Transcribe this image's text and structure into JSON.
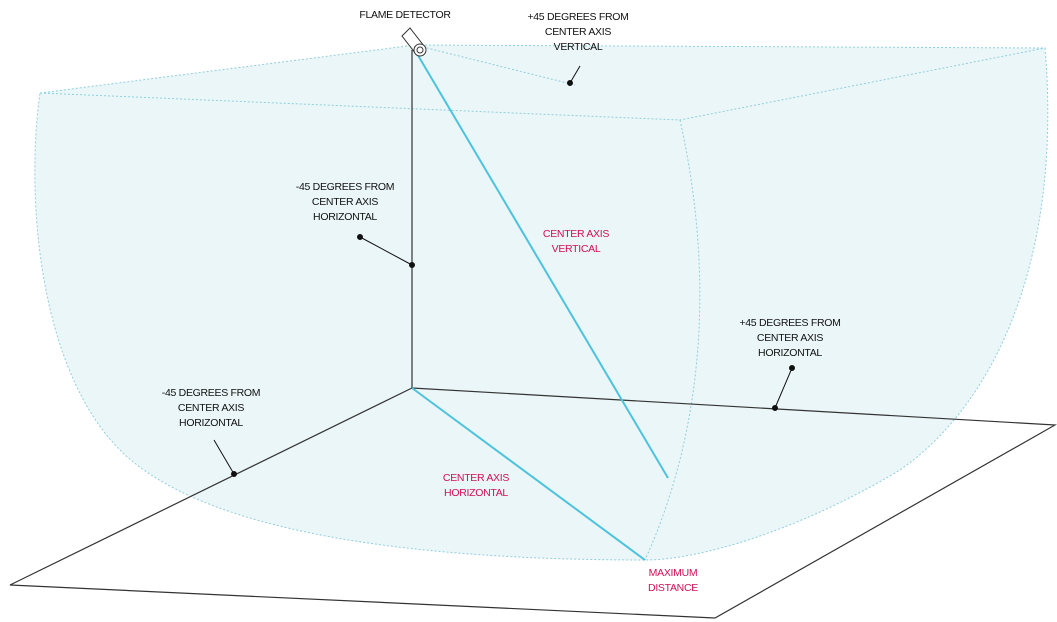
{
  "labels": [
    {
      "lines": [
        "FLAME DETECTOR"
      ],
      "color": "#111"
    },
    {
      "lines": [
        "+45 DEGREES FROM",
        "CENTER AXIS",
        "VERTICAL"
      ],
      "color": "#111"
    },
    {
      "lines": [
        "-45 DEGREES FROM",
        "CENTER AXIS",
        "HORIZONTAL"
      ],
      "color": "#111"
    },
    {
      "lines": [
        "CENTER AXIS",
        "VERTICAL"
      ],
      "color": "#d0105a"
    },
    {
      "lines": [
        "+45 DEGREES FROM",
        "CENTER AXIS",
        "HORIZONTAL"
      ],
      "color": "#111"
    },
    {
      "lines": [
        "-45 DEGREES FROM",
        "CENTER AXIS",
        "HORIZONTAL"
      ],
      "color": "#111"
    },
    {
      "lines": [
        "CENTER AXIS",
        "HORIZONTAL"
      ],
      "color": "#d0105a"
    },
    {
      "lines": [
        "MAXIMUM",
        "DISTANCE"
      ],
      "color": "#d0105a"
    }
  ]
}
